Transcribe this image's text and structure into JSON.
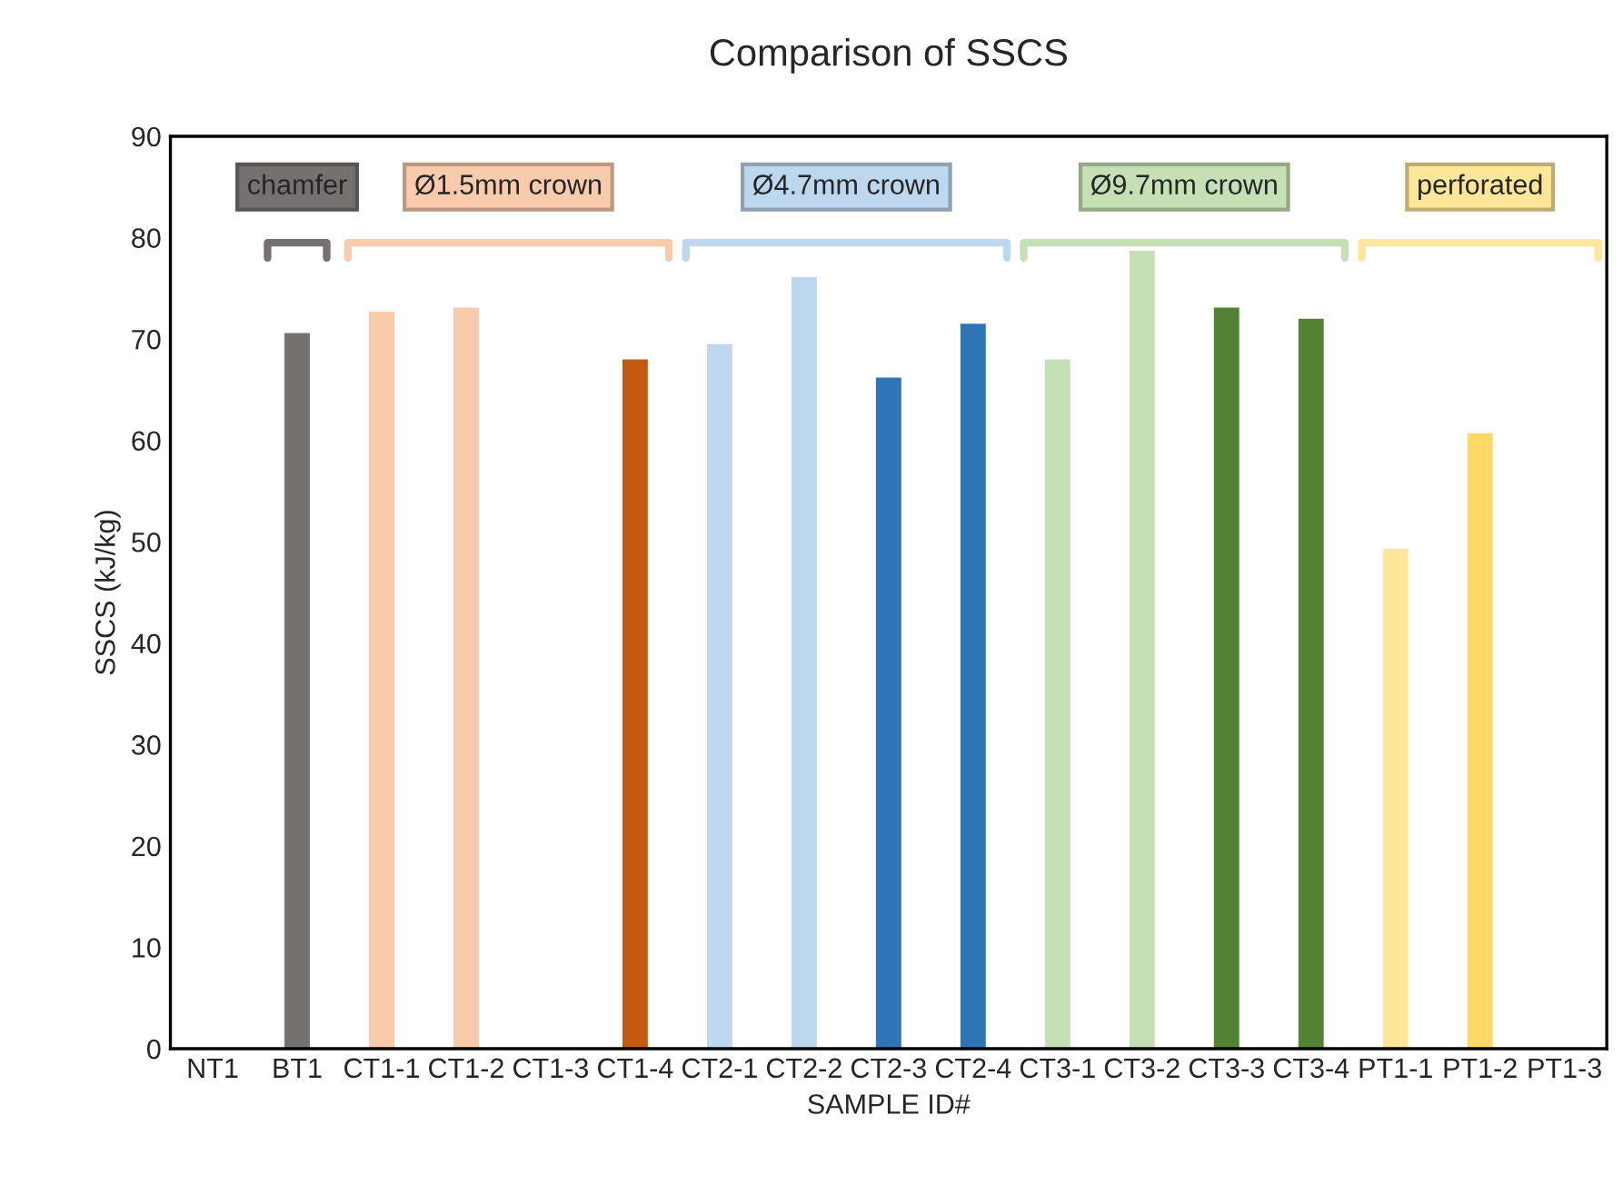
{
  "chart_data": {
    "type": "bar",
    "title": "Comparison of SSCS",
    "xlabel": "SAMPLE ID#",
    "ylabel": "SSCS (kJ/kg)",
    "categories": [
      "NT1",
      "BT1",
      "CT1-1",
      "CT1-2",
      "CT1-3",
      "CT1-4",
      "CT2-1",
      "CT2-2",
      "CT2-3",
      "CT2-4",
      "CT3-1",
      "CT3-2",
      "CT3-3",
      "CT3-4",
      "PT1-1",
      "PT1-2",
      "PT1-3"
    ],
    "values": [
      null,
      70.6,
      72.7,
      73.1,
      null,
      68.0,
      69.5,
      76.1,
      66.2,
      71.5,
      68.0,
      78.7,
      73.1,
      72.0,
      49.3,
      60.7,
      null
    ],
    "colors": [
      "#767171",
      "#767171",
      "#f8cbad",
      "#f8cbad",
      "#f8cbad",
      "#c55a11",
      "#bdd7ee",
      "#bdd7ee",
      "#2e75b6",
      "#2e75b6",
      "#c5e0b4",
      "#c5e0b4",
      "#548235",
      "#548235",
      "#ffe699",
      "#ffd966",
      "#ffd966"
    ],
    "ylim": [
      0,
      90
    ],
    "yticks": [
      0,
      10,
      20,
      30,
      40,
      50,
      60,
      70,
      80,
      90
    ],
    "grid": false,
    "annotations": [
      "chamfer",
      "Ø1.5mm crown",
      "Ø4.7mm crown",
      "Ø9.7mm crown",
      "perforated"
    ]
  }
}
